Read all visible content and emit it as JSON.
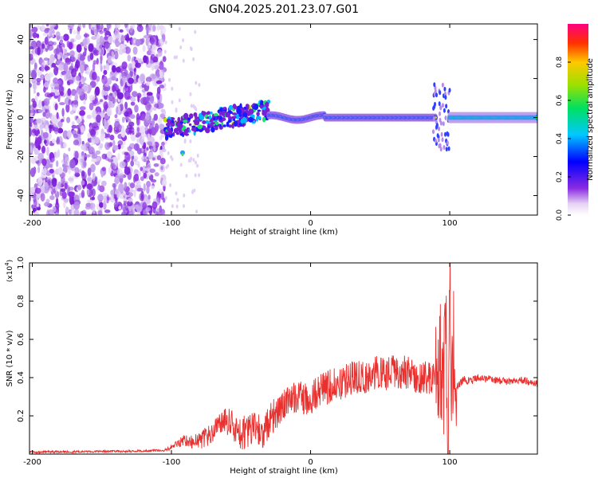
{
  "title": "GN04.2025.201.23.07.G01",
  "colors": {
    "snr_line": "#e8302e",
    "axis": "#000000",
    "background": "#ffffff"
  },
  "chart_data": [
    {
      "type": "heatmap",
      "xlabel": "Height of straight line (km)",
      "ylabel": "Frequency (Hz)",
      "xlim": [
        -202,
        163
      ],
      "ylim": [
        -50,
        48
      ],
      "x_ticks": [
        -200,
        -100,
        0,
        100
      ],
      "y_ticks": [
        -40,
        -20,
        0,
        20,
        40
      ],
      "colorbar": {
        "label": "Normalized spectral amplitude",
        "range": [
          0,
          1
        ],
        "ticks": [
          0,
          0.2,
          0.4,
          0.6,
          0.8
        ],
        "tick_labels": [
          "0.0",
          "0.2",
          "0.4",
          "0.6",
          "0.8"
        ],
        "colormap": "rainbow (violet-blue-cyan-green-yellow-red)"
      },
      "regions": [
        {
          "x_range": [
            -202,
            -105
          ],
          "freq_range": [
            -50,
            48
          ],
          "amplitude": "low-medium scattered noise"
        },
        {
          "x_range": [
            -105,
            -30
          ],
          "freq_center": [
            -5,
            5
          ],
          "amplitude": "medium-high, rising trend"
        },
        {
          "x_range": [
            -30,
            90
          ],
          "freq_center": 0,
          "amplitude": "high narrow band near 0 Hz"
        },
        {
          "x_range": [
            90,
            100
          ],
          "freq_range": [
            -15,
            20
          ],
          "amplitude": "medium burst"
        },
        {
          "x_range": [
            100,
            163
          ],
          "freq_center": 0,
          "amplitude": "medium-high steady band"
        }
      ]
    },
    {
      "type": "line",
      "xlabel": "Height of straight line (km)",
      "ylabel": "SNR (10 * v/v)",
      "y_scale_label": "(x10",
      "y_scale_exp": "4",
      "y_scale_close": ")",
      "xlim": [
        -202,
        163
      ],
      "ylim": [
        0,
        1.0
      ],
      "x_ticks": [
        -200,
        -100,
        0,
        100
      ],
      "y_ticks": [
        0.2,
        0.4,
        0.6,
        0.8,
        1.0
      ],
      "y_tick_labels": [
        "0.2",
        "0.4",
        "0.6",
        "0.8",
        "1.0"
      ],
      "series": [
        {
          "x": [
            -202,
            -180,
            -160,
            -140,
            -120,
            -105,
            -100,
            -95,
            -90,
            -85,
            -80,
            -75,
            -70,
            -65,
            -60,
            -55,
            -50,
            -45,
            -40,
            -35,
            -30,
            -25,
            -20,
            -15,
            -10,
            -5,
            0,
            5,
            10,
            15,
            20,
            25,
            30,
            35,
            40,
            45,
            50,
            55,
            60,
            65,
            70,
            75,
            80,
            85,
            90,
            93,
            95,
            97,
            99,
            100,
            101,
            103,
            105,
            110,
            115,
            120,
            130,
            140,
            150,
            163
          ],
          "y": [
            0.01,
            0.012,
            0.012,
            0.014,
            0.016,
            0.02,
            0.035,
            0.06,
            0.07,
            0.06,
            0.07,
            0.09,
            0.12,
            0.15,
            0.17,
            0.15,
            0.11,
            0.12,
            0.14,
            0.1,
            0.16,
            0.22,
            0.26,
            0.27,
            0.3,
            0.29,
            0.3,
            0.32,
            0.34,
            0.36,
            0.37,
            0.38,
            0.4,
            0.41,
            0.4,
            0.42,
            0.43,
            0.41,
            0.44,
            0.43,
            0.42,
            0.41,
            0.4,
            0.39,
            0.4,
            0.55,
            0.2,
            0.65,
            0.03,
            1.0,
            0.15,
            0.6,
            0.35,
            0.39,
            0.38,
            0.4,
            0.39,
            0.38,
            0.39,
            0.37
          ]
        }
      ]
    }
  ]
}
